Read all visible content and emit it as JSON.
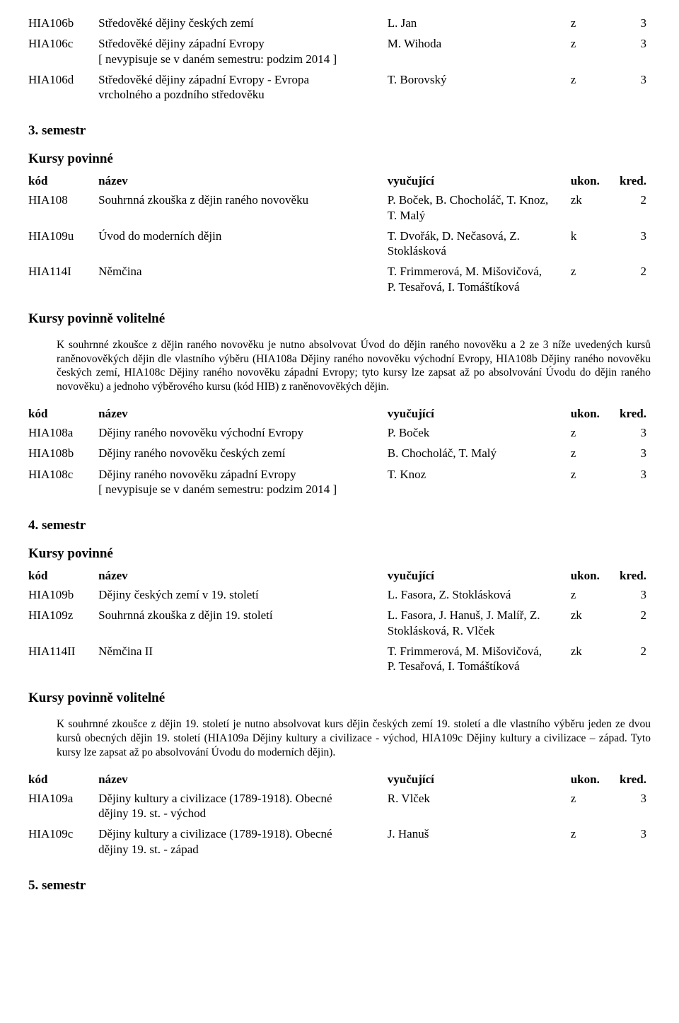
{
  "header_table": {
    "cols": [
      "kód",
      "název",
      "vyučující",
      "ukon.",
      "kred."
    ]
  },
  "top_rows": [
    {
      "code": "HIA106b",
      "name": "Středověké dějiny českých zemí",
      "teacher": "L. Jan",
      "compl": "z",
      "cred": "3"
    },
    {
      "code": "HIA106c",
      "name": "Středověké dějiny západní Evropy",
      "name2": "[ nevypisuje se v daném semestru: podzim 2014 ]",
      "teacher": "M. Wihoda",
      "compl": "z",
      "cred": "3"
    },
    {
      "code": "HIA106d",
      "name": "Středověké dějiny západní Evropy - Evropa",
      "name2": "vrcholného a pozdního středověku",
      "teacher": "T. Borovský",
      "compl": "z",
      "cred": "3"
    }
  ],
  "sem3_title": "3. semestr",
  "kp": "Kursy povinné",
  "kp_vol": "Kursy povinně volitelné",
  "sem3_rows": [
    {
      "code": "HIA108",
      "name": "Souhrnná zkouška z dějin raného novověku",
      "teacher": "P. Boček, B. Chocholáč, T. Knoz,",
      "teacher2": "T. Malý",
      "compl": "zk",
      "cred": "2"
    },
    {
      "code": "HIA109u",
      "name": "Úvod do moderních dějin",
      "teacher": "T. Dvořák, D. Nečasová, Z.",
      "teacher2": "Stoklásková",
      "compl": "k",
      "cred": "3"
    },
    {
      "code": "HIA114I",
      "name": "Němčina",
      "teacher": "T. Frimmerová, M. Mišovičová,",
      "teacher2": "P. Tesařová, I. Tomáštíková",
      "compl": "z",
      "cred": "2"
    }
  ],
  "sem3_note": "K souhrnné zkoušce z dějin raného novověku je nutno absolvovat Úvod do dějin raného novověku a 2 ze 3 níže uvedených kursů raněnovověkých dějin dle vlastního výběru (HIA108a Dějiny raného novověku východní Evropy, HIA108b Dějiny raného novověku českých zemí, HIA108c Dějiny raného novověku západní Evropy; tyto kursy lze zapsat až po absolvování Úvodu do dějin raného novověku) a jednoho výběrového kursu (kód HIB) z raněnovověkých dějin.",
  "sem3b_rows": [
    {
      "code": "HIA108a",
      "name": "Dějiny raného novověku východní Evropy",
      "teacher": "P. Boček",
      "compl": "z",
      "cred": "3"
    },
    {
      "code": "HIA108b",
      "name": "Dějiny raného novověku českých zemí",
      "teacher": "B. Chocholáč, T. Malý",
      "compl": "z",
      "cred": "3"
    },
    {
      "code": "HIA108c",
      "name": "Dějiny raného novověku západní Evropy",
      "name2": "[ nevypisuje se v daném semestru: podzim 2014 ]",
      "teacher": "T. Knoz",
      "compl": "z",
      "cred": "3"
    }
  ],
  "sem4_title": "4. semestr",
  "sem4_rows": [
    {
      "code": "HIA109b",
      "name": "Dějiny českých zemí v 19. století",
      "teacher": "L. Fasora, Z. Stoklásková",
      "compl": "z",
      "cred": "3"
    },
    {
      "code": "HIA109z",
      "name": "Souhrnná zkouška z dějin 19. století",
      "teacher": "L. Fasora, J. Hanuš, J. Malíř, Z.",
      "teacher2": "Stoklásková, R. Vlček",
      "compl": "zk",
      "cred": "2"
    },
    {
      "code": "HIA114II",
      "name": "Němčina II",
      "teacher": "T. Frimmerová, M. Mišovičová,",
      "teacher2": "P. Tesařová, I. Tomáštíková",
      "compl": "zk",
      "cred": "2"
    }
  ],
  "sem4_note": "K souhrnné zkoušce z dějin 19. století je nutno absolvovat kurs dějin českých zemí 19. století a dle vlastního výběru jeden ze dvou kursů obecných dějin 19. století (HIA109a Dějiny kultury a civilizace - východ, HIA109c Dějiny kultury a civilizace – západ. Tyto kursy lze zapsat až po absolvování Úvodu do moderních dějin).",
  "sem4b_rows": [
    {
      "code": "HIA109a",
      "name": "Dějiny kultury a civilizace (1789-1918). Obecné",
      "name2": "dějiny 19. st. - východ",
      "teacher": "R. Vlček",
      "compl": "z",
      "cred": "3"
    },
    {
      "code": "HIA109c",
      "name": "Dějiny kultury a civilizace (1789-1918). Obecné",
      "name2": "dějiny 19. st. - západ",
      "teacher": "J. Hanuš",
      "compl": "z",
      "cred": "3"
    }
  ],
  "sem5_title": "5. semestr"
}
